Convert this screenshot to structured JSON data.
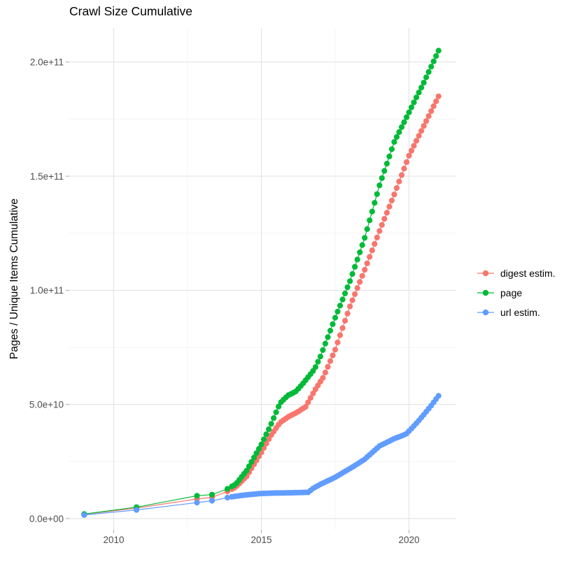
{
  "title": "Crawl Size Cumulative",
  "axes": {
    "y_label": "Pages / Unique Items Cumulative",
    "x_tick_labels": [
      "2010",
      "2015",
      "2020"
    ],
    "y_tick_labels": [
      "0.0e+00",
      "5.0e+10",
      "1.0e+11",
      "1.5e+11",
      "2.0e+11"
    ]
  },
  "legend": {
    "items": [
      {
        "label": "digest estim.",
        "color": "#F8766D"
      },
      {
        "label": "page",
        "color": "#00BA38"
      },
      {
        "label": "url estim.",
        "color": "#619CFF"
      }
    ]
  },
  "chart_data": {
    "type": "line",
    "title": "Crawl Size Cumulative",
    "xlabel": "",
    "ylabel": "Pages / Unique Items Cumulative",
    "x_unit": "year",
    "y_unit": "cumulative count; series values stored in billions (1e9)",
    "marker": "point+line",
    "grid": "major+minor",
    "legend_position": "right",
    "x_range": [
      2008.45,
      2021.6
    ],
    "y_range_e9": [
      -5,
      216
    ],
    "x_ticks": [
      2010,
      2015,
      2020
    ],
    "x_minor_ticks": [
      2012.5,
      2017.5
    ],
    "y_ticks_e9": [
      0,
      50,
      100,
      150,
      200
    ],
    "y_minor_ticks_e9": [
      25,
      75,
      125,
      175
    ],
    "sampling": {
      "sparse_years": [
        2009.0,
        2010.77,
        2012.82,
        2013.33,
        2013.85
      ],
      "monthly_start": 2014.0,
      "monthly_end": 2021.0,
      "points_per_year": 12
    },
    "series": [
      {
        "name": "digest estim.",
        "color": "#F8766D",
        "anchors": [
          [
            2009,
            1.9
          ],
          [
            2010.77,
            4.6
          ],
          [
            2012.82,
            8.6
          ],
          [
            2013.33,
            9.3
          ],
          [
            2013.85,
            11.9
          ],
          [
            2014.13,
            13.8
          ],
          [
            2014.5,
            18.5
          ],
          [
            2015,
            29
          ],
          [
            2015.3,
            36
          ],
          [
            2015.63,
            42
          ],
          [
            2015.9,
            44.5
          ],
          [
            2016.2,
            46.5
          ],
          [
            2016.5,
            49
          ],
          [
            2016.8,
            56
          ],
          [
            2017.1,
            62
          ],
          [
            2017.5,
            74
          ],
          [
            2018,
            93
          ],
          [
            2018.5,
            109
          ],
          [
            2019,
            126
          ],
          [
            2019.5,
            142
          ],
          [
            2020,
            159
          ],
          [
            2020.5,
            172
          ],
          [
            2021,
            185
          ]
        ]
      },
      {
        "name": "page",
        "color": "#00BA38",
        "anchors": [
          [
            2009,
            2
          ],
          [
            2010.77,
            5
          ],
          [
            2012.82,
            10
          ],
          [
            2013.33,
            10.5
          ],
          [
            2013.85,
            13
          ],
          [
            2014.13,
            15
          ],
          [
            2014.5,
            21
          ],
          [
            2015,
            32.5
          ],
          [
            2015.3,
            40.5
          ],
          [
            2015.63,
            50.5
          ],
          [
            2015.9,
            54
          ],
          [
            2016.15,
            55.5
          ],
          [
            2016.4,
            59
          ],
          [
            2016.8,
            65.5
          ],
          [
            2017,
            71
          ],
          [
            2017.5,
            88
          ],
          [
            2018,
            104
          ],
          [
            2018.5,
            123
          ],
          [
            2019,
            146
          ],
          [
            2019.5,
            165
          ],
          [
            2020,
            178
          ],
          [
            2020.5,
            191
          ],
          [
            2021,
            205
          ]
        ]
      },
      {
        "name": "url estim.",
        "color": "#619CFF",
        "anchors": [
          [
            2009,
            1.55
          ],
          [
            2010.77,
            3.8
          ],
          [
            2012.82,
            7
          ],
          [
            2013.33,
            7.8
          ],
          [
            2013.85,
            9.2
          ],
          [
            2014.13,
            9.8
          ],
          [
            2014.5,
            10.4
          ],
          [
            2015,
            11
          ],
          [
            2015.5,
            11.2
          ],
          [
            2016,
            11.3
          ],
          [
            2016.6,
            11.5
          ],
          [
            2016.72,
            13
          ],
          [
            2017,
            15
          ],
          [
            2017.5,
            18.1
          ],
          [
            2018.1,
            22.7
          ],
          [
            2018.5,
            26
          ],
          [
            2019,
            31.8
          ],
          [
            2019.5,
            35
          ],
          [
            2019.9,
            37
          ],
          [
            2020.2,
            41
          ],
          [
            2020.5,
            45.5
          ],
          [
            2020.75,
            49.5
          ],
          [
            2021,
            53.8
          ]
        ]
      }
    ]
  }
}
